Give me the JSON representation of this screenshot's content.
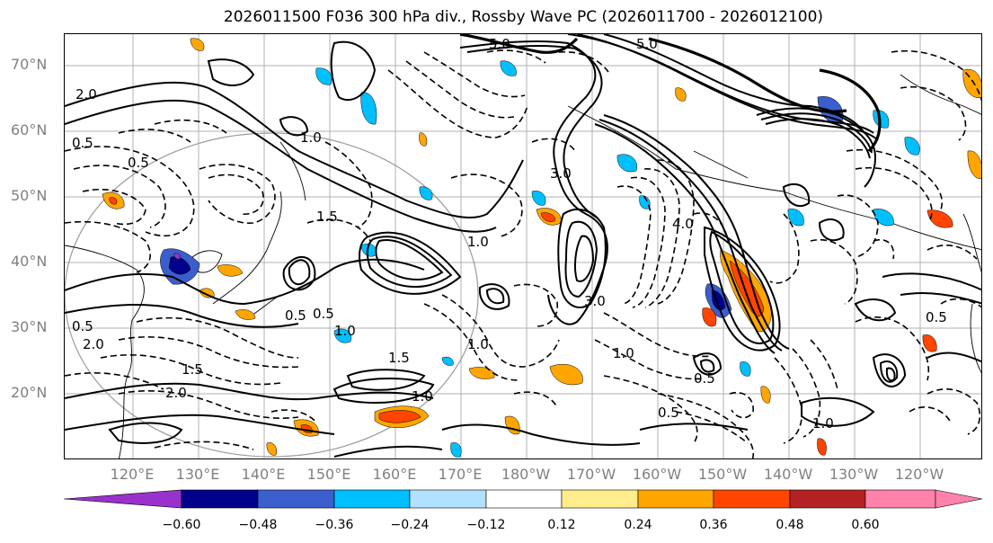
{
  "title": "2026011500 F036 300 hPa div., Rossby Wave PC (2026011700 - 2026012100)",
  "latitude_labels": [
    "70°N",
    "60°N",
    "50°N",
    "40°N",
    "30°N",
    "20°N"
  ],
  "longitude_labels": [
    "120°E",
    "130°E",
    "140°E",
    "150°E",
    "160°E",
    "170°E",
    "180°W",
    "170°W",
    "160°W",
    "150°W",
    "140°W",
    "130°W",
    "120°W"
  ],
  "contour_labels": [
    "5.0",
    "5.0",
    "2.0",
    "0.5",
    "0.5",
    "1.0",
    "1.5",
    "0.5",
    "3.0",
    "4.0",
    "1.0",
    "0.5",
    "3.0",
    "1.0",
    "1.0",
    "1.5",
    "1.0",
    "0.5",
    "2.0",
    "1.5",
    "2.0",
    "0.5",
    "1.0",
    "0.5",
    "0.5",
    "1.0"
  ],
  "colorbar": {
    "ticks": [
      "−0.60",
      "−0.48",
      "−0.36",
      "−0.24",
      "−0.12",
      "0.12",
      "0.24",
      "0.36",
      "0.48",
      "0.60"
    ],
    "colors": [
      "#9932cc",
      "#00008b",
      "#3a5fcd",
      "#00bfff",
      "#b0e2ff",
      "#ffffff",
      "#ffec8b",
      "#ffa500",
      "#ff4500",
      "#b22222",
      "#ff82ab"
    ]
  }
}
